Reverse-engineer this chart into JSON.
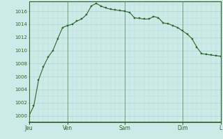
{
  "background_color": "#cceae7",
  "grid_color_major": "#aad4d0",
  "grid_color_minor": "#bbdedd",
  "line_color": "#2d6629",
  "marker_color": "#2d6629",
  "x_tick_labels": [
    "Jeu",
    "Ven",
    "Sam",
    "Dim",
    "L"
  ],
  "x_tick_positions": [
    0,
    8,
    20,
    32,
    40
  ],
  "ylim": [
    999,
    1017.5
  ],
  "yticks": [
    1000,
    1002,
    1004,
    1006,
    1008,
    1010,
    1012,
    1014,
    1016
  ],
  "data_x": [
    0,
    1,
    2,
    3,
    4,
    5,
    6,
    7,
    8,
    9,
    10,
    11,
    12,
    13,
    14,
    15,
    16,
    17,
    18,
    19,
    20,
    21,
    22,
    23,
    24,
    25,
    26,
    27,
    28,
    29,
    30,
    31,
    32,
    33,
    34,
    35,
    36,
    37,
    38,
    39,
    40
  ],
  "data_y": [
    1000,
    1001.5,
    1005.5,
    1007.5,
    1009,
    1010,
    1011.8,
    1013.5,
    1013.8,
    1014,
    1014.5,
    1014.8,
    1015.5,
    1016.8,
    1017.2,
    1016.8,
    1016.5,
    1016.3,
    1016.2,
    1016.1,
    1016,
    1015.8,
    1015,
    1014.9,
    1014.8,
    1014.8,
    1015.2,
    1015,
    1014.2,
    1014.1,
    1013.8,
    1013.5,
    1013,
    1012.5,
    1011.8,
    1010.5,
    1009.5,
    1009.4,
    1009.3,
    1009.2,
    1009.1
  ],
  "day_line_color": "#3a7a3a",
  "spine_color": "#2d5c1e"
}
